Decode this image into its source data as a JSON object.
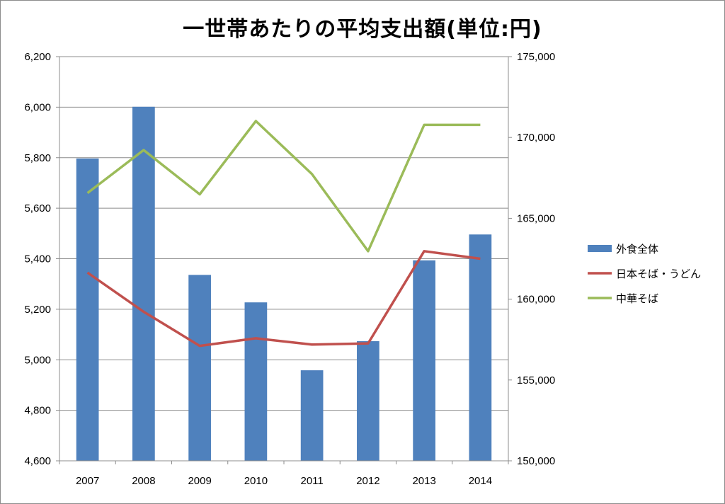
{
  "chart_data": {
    "type": "bar",
    "title": "一世帯あたりの平均支出額(単位:円)",
    "categories": [
      "2007",
      "2008",
      "2009",
      "2010",
      "2011",
      "2012",
      "2013",
      "2014"
    ],
    "y_left": {
      "min": 4600,
      "max": 6200,
      "step": 200,
      "tick_labels": [
        "4,600",
        "4,800",
        "5,000",
        "5,200",
        "5,400",
        "5,600",
        "5,800",
        "6,000",
        "6,200"
      ]
    },
    "y_right": {
      "min": 150000,
      "max": 175000,
      "step": 5000,
      "tick_labels": [
        "150,000",
        "155,000",
        "160,000",
        "165,000",
        "170,000",
        "175,000"
      ]
    },
    "grid": true,
    "legend_position": "right",
    "series": [
      {
        "name": "外食全体",
        "type": "bar",
        "axis": "right",
        "color": "#4f81bd",
        "values": [
          168700,
          171900,
          161500,
          159800,
          155600,
          157400,
          162400,
          164000
        ]
      },
      {
        "name": "日本そば・うどん",
        "type": "line",
        "axis": "left",
        "color": "#c0504d",
        "values": [
          5345,
          5190,
          5055,
          5085,
          5060,
          5065,
          5430,
          5400
        ]
      },
      {
        "name": "中華そば",
        "type": "line",
        "axis": "left",
        "color": "#9bbb59",
        "values": [
          5660,
          5830,
          5655,
          5945,
          5735,
          5430,
          5930,
          5930
        ]
      }
    ]
  }
}
